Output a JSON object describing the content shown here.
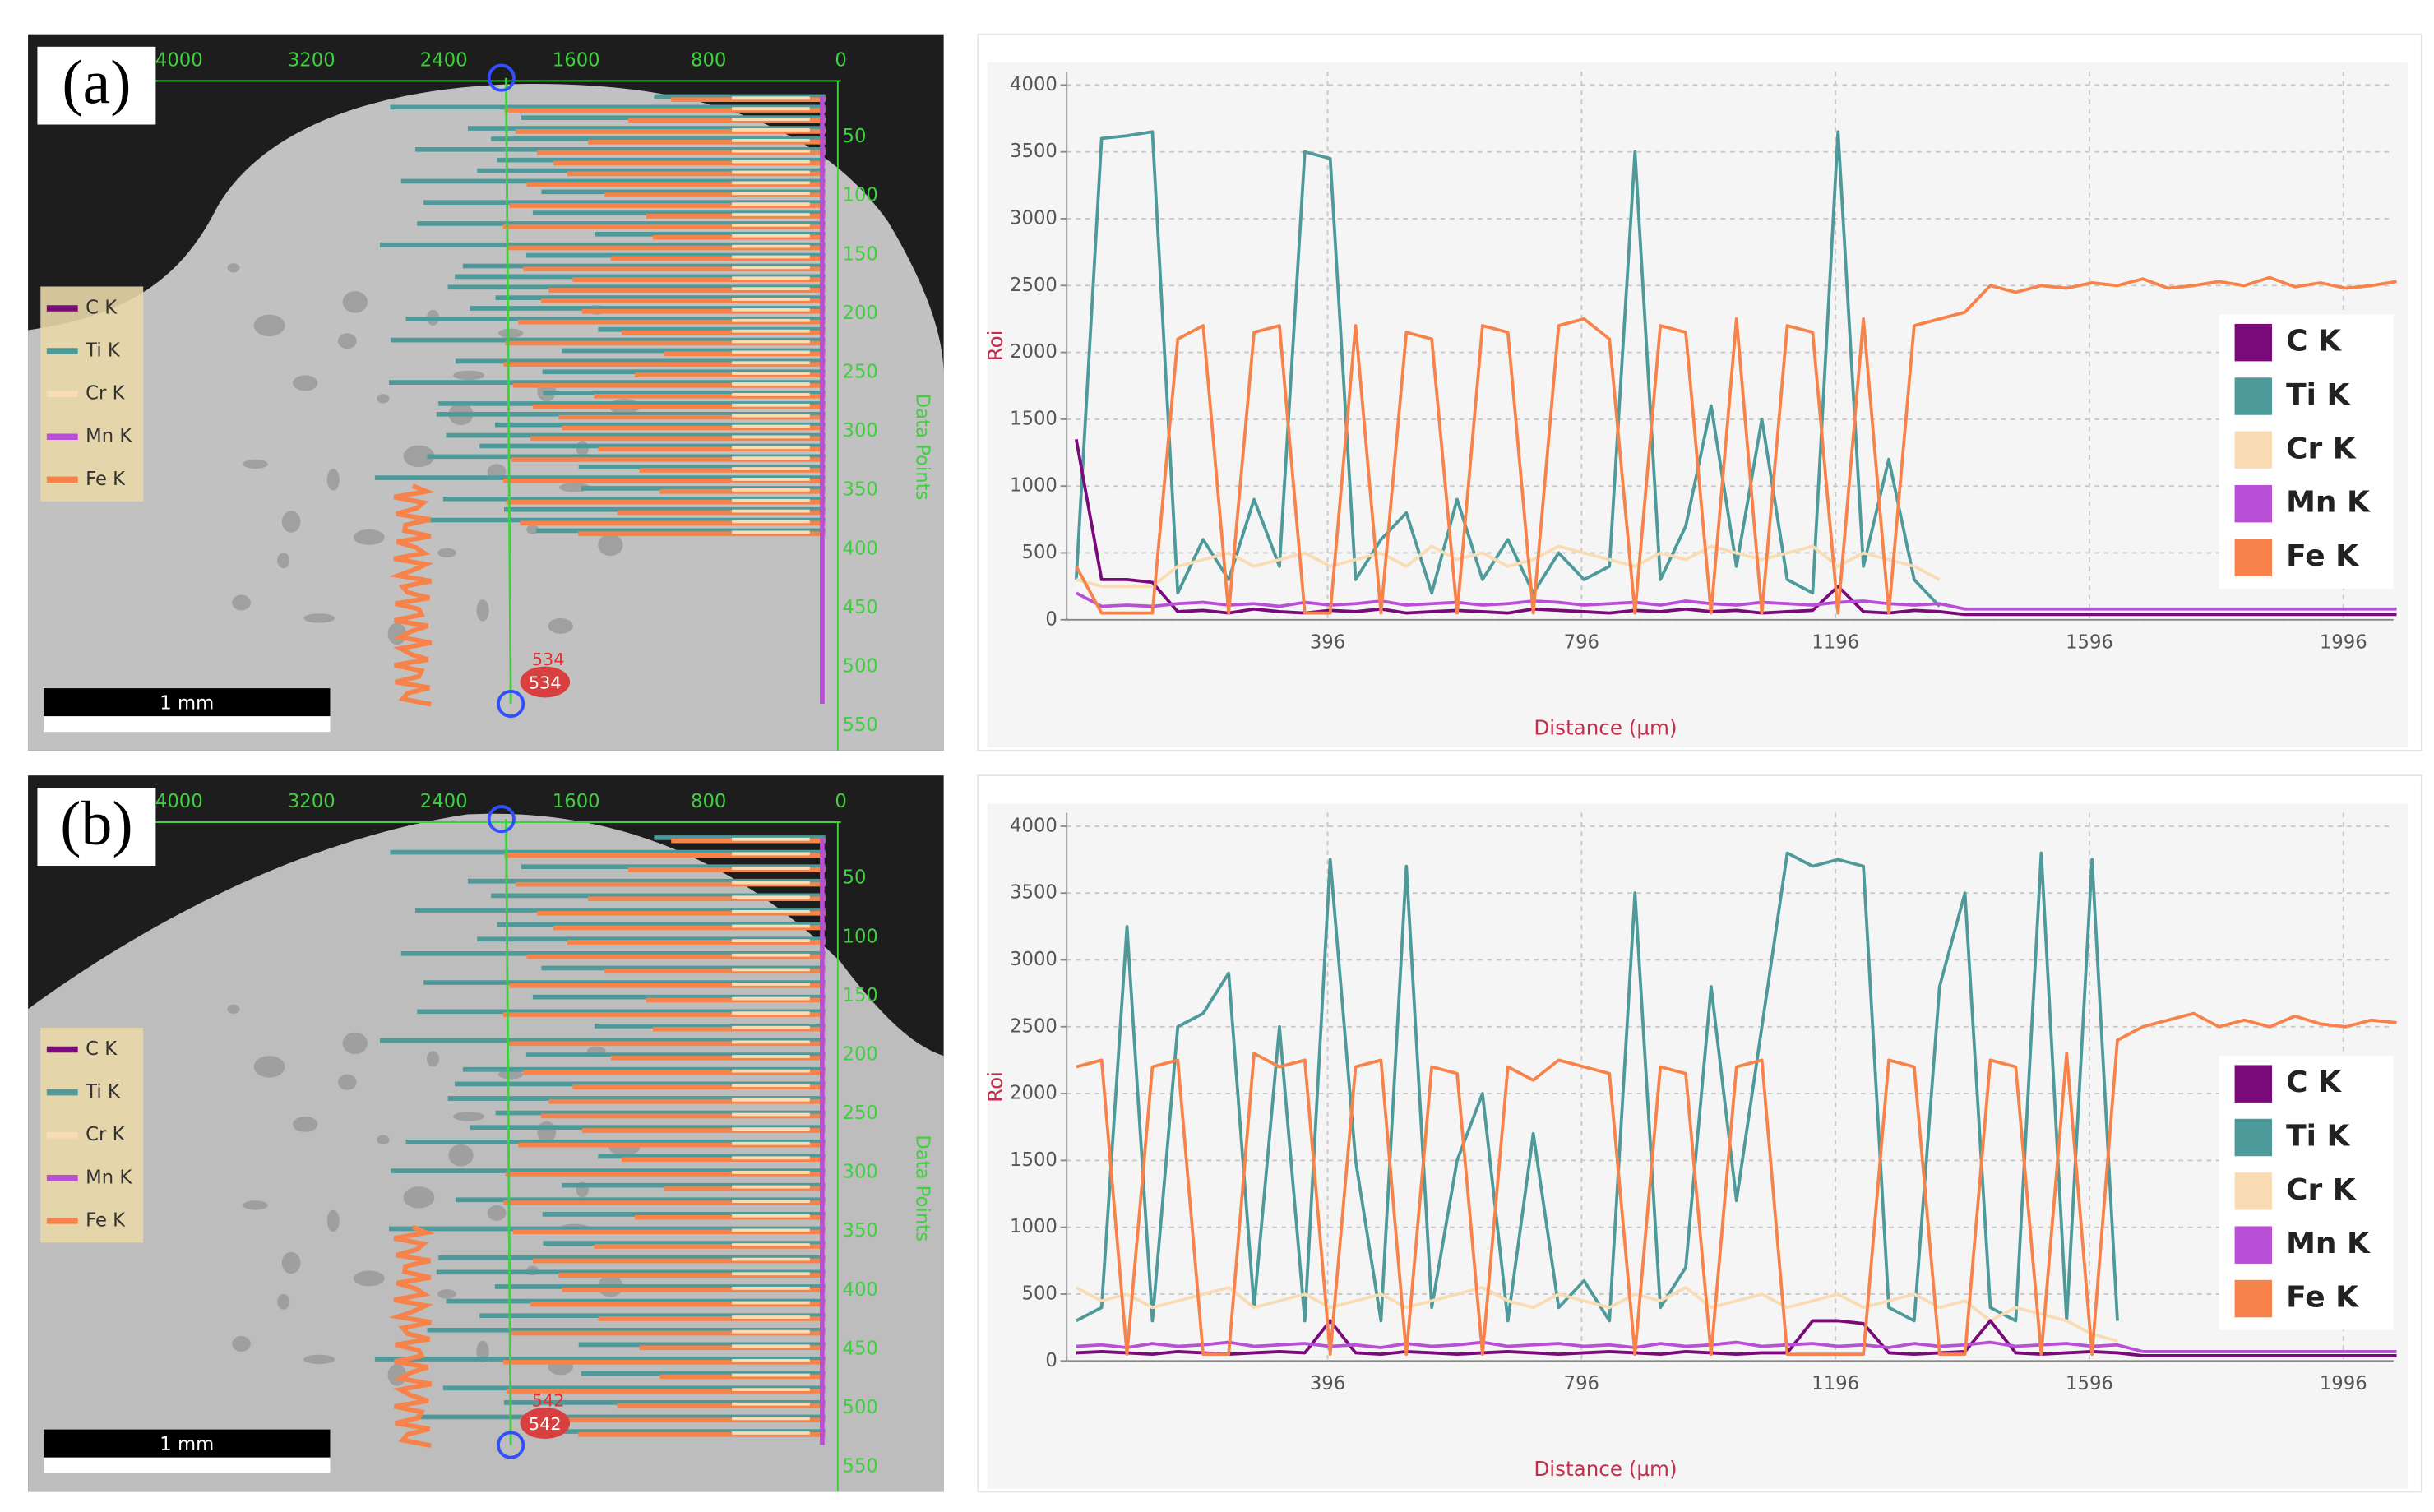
{
  "chart_data": [
    {
      "type": "line",
      "xlabel": "Distance (µm)",
      "ylabel": "Roi",
      "x": [
        0,
        40,
        80,
        120,
        160,
        200,
        240,
        280,
        320,
        360,
        400,
        440,
        480,
        520,
        560,
        600,
        640,
        680,
        720,
        760,
        800,
        840,
        880,
        920,
        960,
        1000,
        1040,
        1080,
        1120,
        1160,
        1200,
        1240,
        1280,
        1320,
        1360,
        1400,
        1440,
        1480,
        1520,
        1560,
        1600,
        1640,
        1680,
        1720,
        1760,
        1800,
        1840,
        1880,
        1920,
        1960,
        2000,
        2040,
        2080
      ],
      "xlim": [
        -15,
        2075
      ],
      "xticks": [
        396,
        796,
        1196,
        1596,
        1996
      ],
      "ylim": [
        0,
        4100
      ],
      "yticks": [
        0,
        500,
        1000,
        1500,
        2000,
        2500,
        3000,
        3500,
        4000
      ],
      "grid": true,
      "legend": "right",
      "series": [
        {
          "name": "C  K",
          "color": "#7a0a7a",
          "values": [
            1350,
            300,
            300,
            280,
            60,
            70,
            50,
            80,
            60,
            50,
            70,
            60,
            80,
            50,
            60,
            70,
            60,
            50,
            80,
            70,
            60,
            50,
            70,
            60,
            80,
            60,
            70,
            50,
            60,
            70,
            250,
            60,
            50,
            70,
            60,
            40,
            40,
            40,
            40,
            40,
            40,
            40,
            40,
            40,
            40,
            40,
            40,
            40,
            40,
            40,
            40,
            40,
            40
          ]
        },
        {
          "name": "Ti K",
          "color": "#4e9a9a",
          "values": [
            300,
            3600,
            3620,
            3650,
            200,
            600,
            300,
            900,
            400,
            3500,
            3450,
            300,
            600,
            800,
            200,
            900,
            300,
            600,
            200,
            500,
            300,
            400,
            3500,
            300,
            700,
            1600,
            400,
            1500,
            300,
            200,
            3650,
            400,
            1200,
            300,
            100,
            null,
            null,
            null,
            null,
            null,
            null,
            null,
            null,
            null,
            null,
            null,
            null,
            null,
            null,
            null,
            null,
            null,
            null
          ]
        },
        {
          "name": "Cr K",
          "color": "#f9dcb4",
          "values": [
            300,
            250,
            250,
            250,
            400,
            450,
            500,
            400,
            450,
            500,
            400,
            450,
            500,
            400,
            550,
            450,
            500,
            400,
            450,
            550,
            500,
            450,
            400,
            500,
            450,
            550,
            500,
            450,
            500,
            550,
            400,
            500,
            450,
            400,
            300,
            null,
            null,
            null,
            null,
            null,
            null,
            null,
            null,
            null,
            null,
            null,
            null,
            null,
            null,
            null,
            null,
            null,
            null
          ]
        },
        {
          "name": "Mn K",
          "color": "#b94fd6",
          "values": [
            200,
            100,
            110,
            100,
            120,
            130,
            110,
            120,
            100,
            130,
            110,
            120,
            140,
            110,
            120,
            130,
            110,
            120,
            140,
            130,
            110,
            120,
            130,
            110,
            140,
            120,
            110,
            130,
            120,
            110,
            130,
            140,
            120,
            110,
            120,
            80,
            80,
            80,
            80,
            80,
            80,
            80,
            80,
            80,
            80,
            80,
            80,
            80,
            80,
            80,
            80,
            80,
            80
          ]
        },
        {
          "name": "Fe K",
          "color": "#f7834a",
          "values": [
            400,
            50,
            50,
            50,
            2100,
            2200,
            50,
            2150,
            2200,
            50,
            50,
            2200,
            50,
            2150,
            2100,
            50,
            2200,
            2150,
            50,
            2200,
            2250,
            2100,
            50,
            2200,
            2150,
            50,
            2250,
            50,
            2200,
            2150,
            50,
            2250,
            50,
            2200,
            2250,
            2300,
            2500,
            2450,
            2500,
            2480,
            2520,
            2500,
            2550,
            2480,
            2500,
            2530,
            2500,
            2560,
            2490,
            2520,
            2480,
            2500,
            2530
          ]
        }
      ]
    },
    {
      "type": "line",
      "xlabel": "Distance (µm)",
      "ylabel": "Roi",
      "x": [
        0,
        40,
        80,
        120,
        160,
        200,
        240,
        280,
        320,
        360,
        400,
        440,
        480,
        520,
        560,
        600,
        640,
        680,
        720,
        760,
        800,
        840,
        880,
        920,
        960,
        1000,
        1040,
        1080,
        1120,
        1160,
        1200,
        1240,
        1280,
        1320,
        1360,
        1400,
        1440,
        1480,
        1520,
        1560,
        1600,
        1640,
        1680,
        1720,
        1760,
        1800,
        1840,
        1880,
        1920,
        1960,
        2000,
        2040,
        2080
      ],
      "xlim": [
        -15,
        2075
      ],
      "xticks": [
        396,
        796,
        1196,
        1596,
        1996
      ],
      "ylim": [
        0,
        4100
      ],
      "yticks": [
        0,
        500,
        1000,
        1500,
        2000,
        2500,
        3000,
        3500,
        4000
      ],
      "grid": true,
      "legend": "right",
      "series": [
        {
          "name": "C  K",
          "color": "#7a0a7a",
          "values": [
            60,
            70,
            60,
            50,
            70,
            60,
            50,
            60,
            70,
            60,
            300,
            60,
            50,
            70,
            60,
            50,
            60,
            70,
            60,
            50,
            60,
            70,
            60,
            50,
            70,
            60,
            50,
            60,
            60,
            300,
            300,
            280,
            60,
            50,
            60,
            70,
            300,
            60,
            50,
            60,
            70,
            60,
            40,
            40,
            40,
            40,
            40,
            40,
            40,
            40,
            40,
            40,
            40
          ]
        },
        {
          "name": "Ti K",
          "color": "#4e9a9a",
          "values": [
            300,
            400,
            3250,
            300,
            2500,
            2600,
            2900,
            400,
            2500,
            300,
            3750,
            1500,
            300,
            3700,
            400,
            1500,
            2000,
            300,
            1700,
            400,
            600,
            300,
            3500,
            400,
            700,
            2800,
            1200,
            2500,
            3800,
            3700,
            3750,
            3700,
            400,
            300,
            2800,
            3500,
            400,
            300,
            3800,
            300,
            3750,
            300,
            null,
            null,
            null,
            null,
            null,
            null,
            null,
            null,
            null,
            null,
            null
          ]
        },
        {
          "name": "Cr K",
          "color": "#f9dcb4",
          "values": [
            550,
            450,
            500,
            400,
            450,
            500,
            550,
            400,
            450,
            500,
            400,
            450,
            500,
            400,
            450,
            500,
            550,
            450,
            400,
            500,
            450,
            400,
            500,
            450,
            550,
            400,
            450,
            500,
            400,
            450,
            500,
            400,
            450,
            500,
            400,
            450,
            300,
            400,
            350,
            300,
            200,
            150,
            null,
            null,
            null,
            null,
            null,
            null,
            null,
            null,
            null,
            null,
            null
          ]
        },
        {
          "name": "Mn K",
          "color": "#b94fd6",
          "values": [
            110,
            120,
            100,
            130,
            110,
            120,
            140,
            110,
            120,
            130,
            110,
            120,
            100,
            130,
            110,
            120,
            140,
            110,
            120,
            130,
            110,
            120,
            100,
            130,
            110,
            120,
            140,
            110,
            120,
            130,
            110,
            120,
            100,
            130,
            110,
            120,
            140,
            110,
            120,
            130,
            110,
            120,
            70,
            70,
            70,
            70,
            70,
            70,
            70,
            70,
            70,
            70,
            70
          ]
        },
        {
          "name": "Fe K",
          "color": "#f7834a",
          "values": [
            2200,
            2250,
            50,
            2200,
            2250,
            50,
            50,
            2300,
            2200,
            2250,
            50,
            2200,
            2250,
            50,
            2200,
            2150,
            50,
            2200,
            2100,
            2250,
            2200,
            2150,
            50,
            2200,
            2150,
            50,
            2200,
            2250,
            50,
            50,
            50,
            50,
            2250,
            2200,
            50,
            50,
            2250,
            2200,
            50,
            2300,
            50,
            2400,
            2500,
            2550,
            2600,
            2500,
            2550,
            2500,
            2580,
            2520,
            2500,
            2550,
            2530
          ]
        }
      ]
    }
  ],
  "sem": [
    {
      "label": "(a)",
      "top_ticks": [
        4000,
        3200,
        2400,
        1600,
        800,
        0
      ],
      "right_ticks": [
        50,
        100,
        150,
        200,
        250,
        300,
        350,
        400,
        450,
        500,
        550
      ],
      "right_title": "Data Points",
      "legend": [
        "C  K",
        "Ti K",
        "Cr K",
        "Mn K",
        "Fe K"
      ],
      "scale": "1 mm",
      "marker": "534"
    },
    {
      "label": "(b)",
      "top_ticks": [
        4000,
        3200,
        2400,
        1600,
        800,
        0
      ],
      "right_ticks": [
        50,
        100,
        150,
        200,
        250,
        300,
        350,
        400,
        450,
        500,
        550
      ],
      "right_title": "Data Points",
      "legend": [
        "C  K",
        "Ti K",
        "Cr K",
        "Mn K",
        "Fe K"
      ],
      "scale": "1 mm",
      "marker": "542"
    }
  ]
}
